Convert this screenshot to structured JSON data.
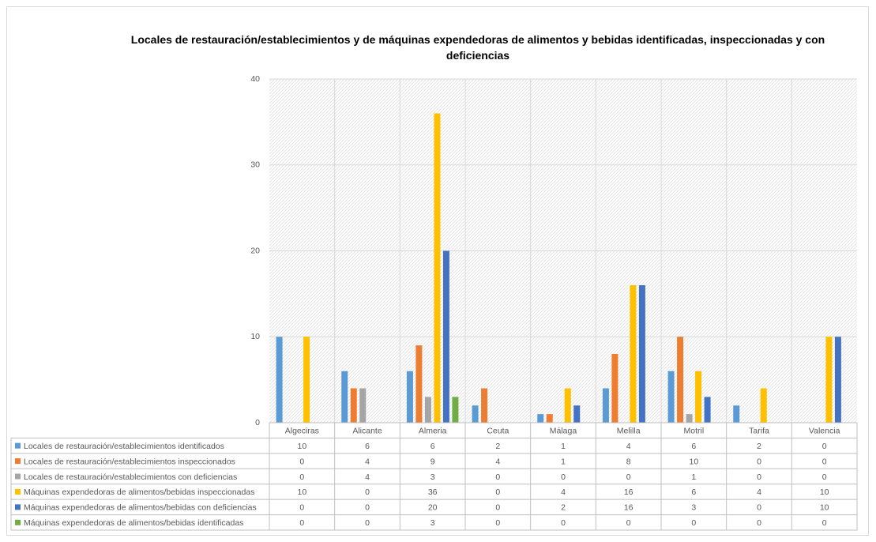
{
  "chart_data": {
    "type": "bar",
    "title": "Locales de restauración/establecimientos y de máquinas expendedoras de alimentos y bebidas identificadas, inspeccionadas y con deficiencias",
    "categories": [
      "Algeciras",
      "Alicante",
      "Almeria",
      "Ceuta",
      "Málaga",
      "Melilla",
      "Motril",
      "Tarifa",
      "Valencia"
    ],
    "series": [
      {
        "name": "Locales de restauración/establecimientos identificados",
        "color": "#5b9bd5",
        "values": [
          10,
          6,
          6,
          2,
          1,
          4,
          6,
          2,
          0
        ]
      },
      {
        "name": "Locales de restauración/establecimientos inspeccionados",
        "color": "#ed7d31",
        "values": [
          0,
          4,
          9,
          4,
          1,
          8,
          10,
          0,
          0
        ]
      },
      {
        "name": "Locales de restauración/establecimientos con deficiencias",
        "color": "#a5a5a5",
        "values": [
          0,
          4,
          3,
          0,
          0,
          0,
          1,
          0,
          0
        ]
      },
      {
        "name": "Máquinas expendedoras de alimentos/bebidas inspeccionadas",
        "color": "#ffc000",
        "values": [
          10,
          0,
          36,
          0,
          4,
          16,
          6,
          4,
          10
        ]
      },
      {
        "name": "Máquinas expendedoras de alimentos/bebidas con deficiencias",
        "color": "#4472c4",
        "values": [
          0,
          0,
          20,
          0,
          2,
          16,
          3,
          0,
          10
        ]
      },
      {
        "name": "Máquinas expendedoras de alimentos/bebidas identificadas",
        "color": "#70ad47",
        "values": [
          0,
          0,
          3,
          0,
          0,
          0,
          0,
          0,
          0
        ]
      }
    ],
    "ylim": [
      0,
      40
    ],
    "yticks": [
      0,
      10,
      20,
      30,
      40
    ],
    "grid": true,
    "data_table": true
  }
}
